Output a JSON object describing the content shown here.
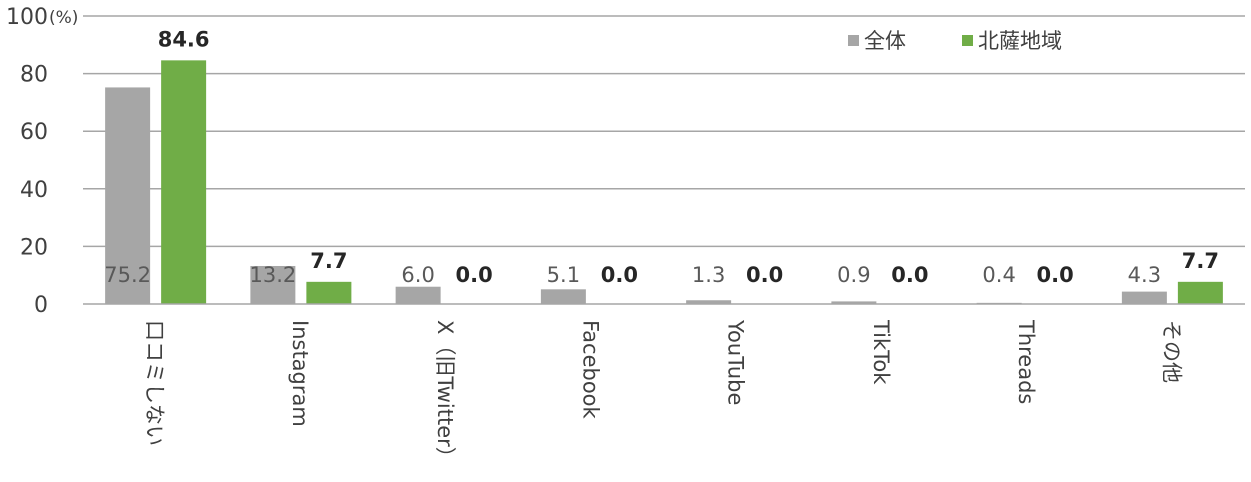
{
  "chart_data": {
    "type": "bar",
    "categories": [
      "口コミしない",
      "Instagram",
      "X（旧Twitter）",
      "Facebook",
      "YouTube",
      "TikTok",
      "Threads",
      "その他"
    ],
    "series": [
      {
        "name": "全体",
        "values": [
          75.2,
          13.2,
          6.0,
          5.1,
          1.3,
          0.9,
          0.4,
          4.3
        ],
        "labels": [
          "75.2",
          "13.2",
          "6.0",
          "5.1",
          "1.3",
          "0.9",
          "0.4",
          "4.3"
        ],
        "color": "#a6a6a6"
      },
      {
        "name": "北薩地域",
        "values": [
          84.6,
          7.7,
          0.0,
          0.0,
          0.0,
          0.0,
          0.0,
          7.7
        ],
        "labels": [
          "84.6",
          "7.7",
          "0.0",
          "0.0",
          "0.0",
          "0.0",
          "0.0",
          "7.7"
        ],
        "color": "#70ad47"
      }
    ],
    "y_ticks": [
      "0",
      "20",
      "40",
      "60",
      "80",
      "100"
    ],
    "y_unit": "(%)",
    "ylim": [
      0,
      100
    ],
    "grid": true,
    "legend_position": "top-right"
  }
}
